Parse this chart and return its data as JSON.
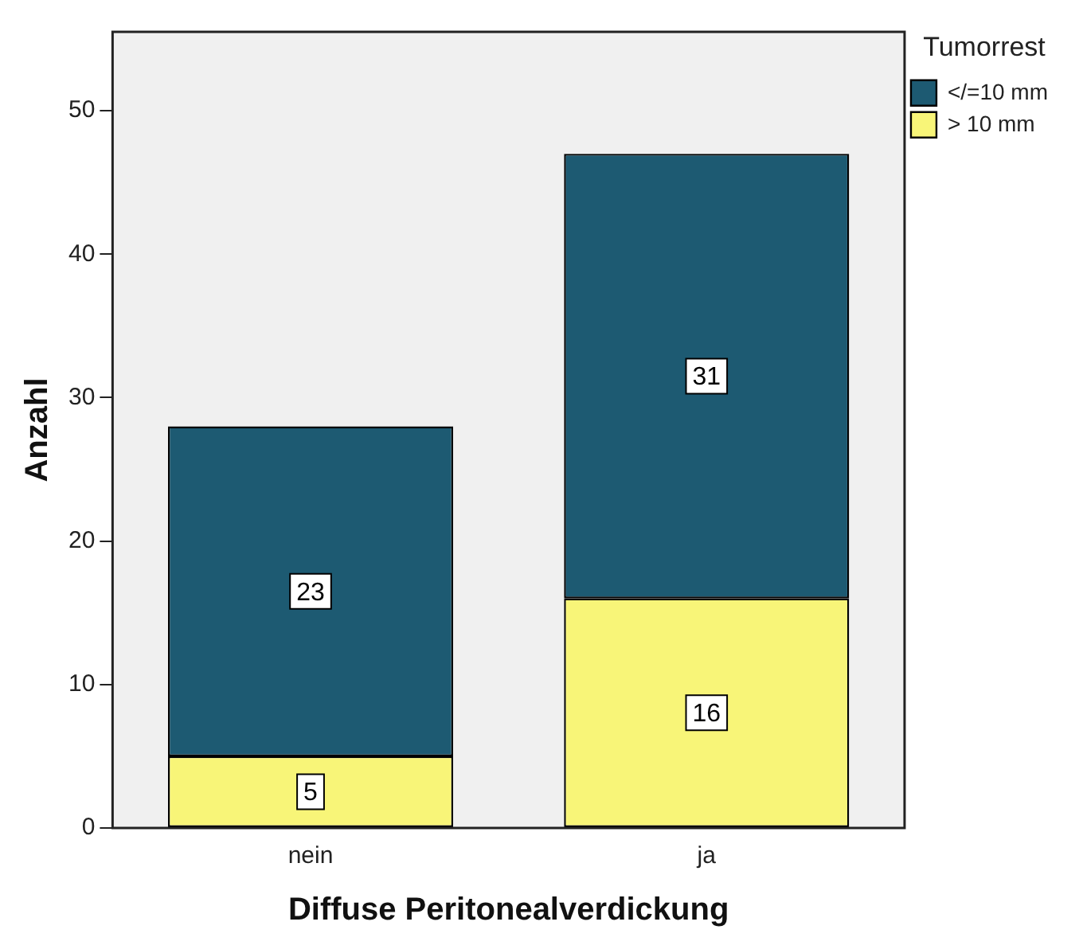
{
  "chart_data": {
    "type": "bar",
    "xlabel": "Diffuse Peritonealverdickung",
    "ylabel": "Anzahl",
    "legend_title": "Tumorrest",
    "categories": [
      "nein",
      "ja"
    ],
    "stacked": true,
    "series": [
      {
        "name": "> 10 mm",
        "color": "#f8f578",
        "values": [
          5,
          16
        ]
      },
      {
        "name": "</=10 mm",
        "color": "#1d5a72",
        "values": [
          23,
          31
        ]
      }
    ],
    "ylim": [
      0,
      55.5
    ],
    "yticks": [
      0,
      10,
      20,
      30,
      40,
      50
    ],
    "grid": false,
    "legend": "top right",
    "data_labels": true
  }
}
